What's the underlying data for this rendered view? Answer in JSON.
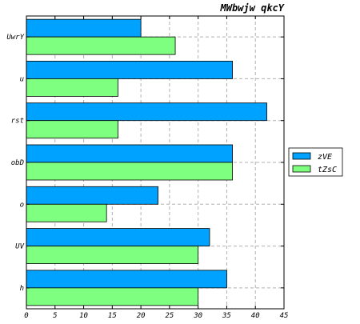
{
  "chart_data": {
    "type": "bar",
    "orientation": "horizontal",
    "title": "MWbwjw qkcY",
    "categories": [
      "UwrY",
      "u",
      "rst",
      "obD",
      "o",
      "UV",
      "h"
    ],
    "series": [
      {
        "name": "zVE",
        "color": "#00a2ff",
        "values": [
          20,
          36,
          42,
          36,
          23,
          32,
          35
        ]
      },
      {
        "name": "tZsC",
        "color": "#7fff7f",
        "values": [
          26,
          16,
          16,
          36,
          14,
          30,
          30
        ]
      }
    ],
    "xlim": [
      0,
      45
    ],
    "xticks": [
      0,
      5,
      10,
      15,
      20,
      25,
      30,
      35,
      40,
      45
    ],
    "grid": true,
    "legend_position": "right"
  }
}
